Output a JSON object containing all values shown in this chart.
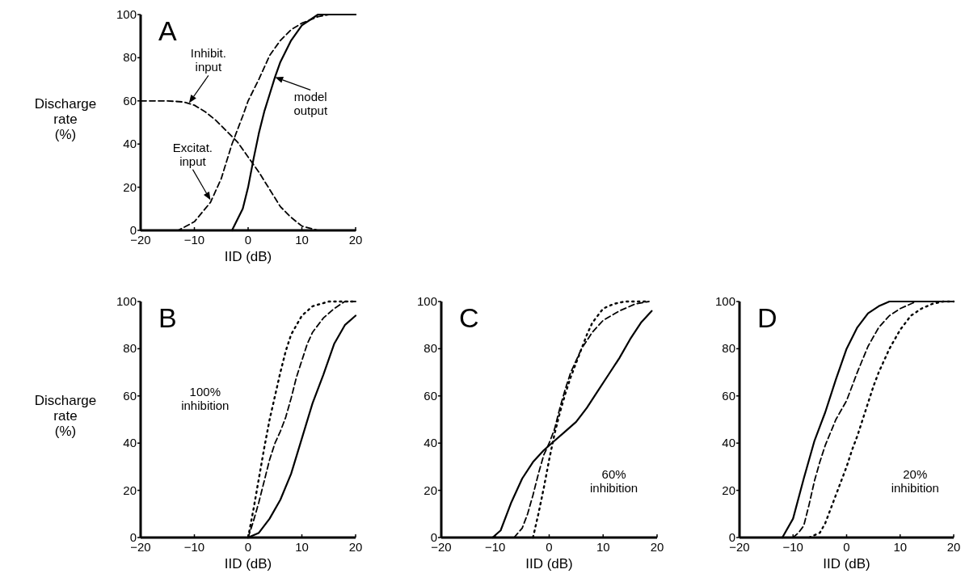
{
  "chart_data": [
    {
      "type": "line",
      "title": "A",
      "xlabel": "IID (dB)",
      "ylabel": "Discharge\nrate\n(%)",
      "xlim": [
        -20,
        20
      ],
      "ylim": [
        0,
        100
      ],
      "xticks": [
        -20,
        -10,
        0,
        10,
        20
      ],
      "yticks": [
        0,
        20,
        40,
        60,
        80,
        100
      ],
      "grid": false,
      "annotations": [
        {
          "text": "Inhibit.\ninput",
          "x": -11,
          "y": 59
        },
        {
          "text": "Excitat.\ninput",
          "x": -7,
          "y": 14
        },
        {
          "text": "model\noutput",
          "x": 5,
          "y": 71
        }
      ],
      "series": [
        {
          "color": "#000000",
          "line_style": "dashed",
          "x": [
            -20,
            -15,
            -12,
            -10,
            -8,
            -6,
            -4,
            -2,
            0,
            2,
            4,
            6,
            8,
            10,
            13,
            20
          ],
          "values": [
            60,
            60,
            59.5,
            58,
            55,
            51,
            46,
            41,
            34,
            27,
            19,
            11,
            6,
            2,
            0,
            0
          ]
        },
        {
          "color": "#000000",
          "line_style": "dashed",
          "x": [
            -20,
            -13,
            -10,
            -7,
            -5,
            -3,
            -1,
            0,
            2,
            4,
            6,
            8,
            10,
            13,
            15,
            20
          ],
          "values": [
            0,
            0,
            4,
            13,
            24,
            40,
            53,
            60,
            70,
            81,
            88,
            93,
            96,
            99,
            100,
            100
          ]
        },
        {
          "color": "#000000",
          "line_style": "solid",
          "x": [
            -3,
            -1,
            0,
            1,
            2,
            3,
            4,
            5,
            6,
            8,
            10,
            13,
            20
          ],
          "values": [
            0,
            10,
            20,
            33,
            45,
            55,
            63,
            71,
            78,
            88,
            95,
            100,
            100
          ]
        }
      ]
    },
    {
      "type": "line",
      "title": "B",
      "xlabel": "IID (dB)",
      "ylabel": "Discharge\nrate\n(%)",
      "xlim": [
        -20,
        20
      ],
      "ylim": [
        0,
        100
      ],
      "xticks": [
        -20,
        -10,
        0,
        10,
        20
      ],
      "yticks": [
        0,
        20,
        40,
        60,
        80,
        100
      ],
      "grid": false,
      "annotations": [
        "100%\ninhibition"
      ],
      "series": [
        {
          "color": "#000000",
          "line_style": "dotted",
          "x": [
            0,
            1,
            2,
            3,
            4,
            5,
            6,
            7,
            8,
            10,
            12,
            15,
            20
          ],
          "values": [
            0,
            12,
            25,
            38,
            50,
            60,
            70,
            79,
            86,
            94,
            98,
            100,
            100
          ]
        },
        {
          "color": "#000000",
          "line_style": "dashed",
          "x": [
            0,
            1,
            2,
            3,
            4,
            5,
            6,
            7,
            8,
            9,
            10,
            11,
            12,
            14,
            16,
            18,
            20
          ],
          "values": [
            0,
            7,
            15,
            24,
            33,
            40,
            45,
            51,
            59,
            68,
            75,
            82,
            87,
            93,
            97,
            100,
            100
          ]
        },
        {
          "color": "#000000",
          "line_style": "solid",
          "x": [
            0,
            2,
            4,
            6,
            8,
            10,
            12,
            14,
            16,
            18,
            20
          ],
          "values": [
            0,
            2,
            8,
            16,
            27,
            42,
            57,
            69,
            82,
            90,
            94
          ]
        }
      ]
    },
    {
      "type": "line",
      "title": "C",
      "xlabel": "IID (dB)",
      "xlim": [
        -20,
        20
      ],
      "ylim": [
        0,
        100
      ],
      "xticks": [
        -20,
        -10,
        0,
        10,
        20
      ],
      "yticks": [
        0,
        20,
        40,
        60,
        80,
        100
      ],
      "grid": false,
      "annotations": [
        "60%\ninhibition"
      ],
      "series": [
        {
          "color": "#000000",
          "line_style": "dotted",
          "x": [
            -3,
            -2,
            -1,
            0,
            1,
            2,
            3,
            4,
            5,
            6,
            7,
            8,
            10,
            12,
            14,
            18
          ],
          "values": [
            0,
            10,
            21,
            33,
            44,
            53,
            61,
            68,
            74,
            80,
            86,
            91,
            97,
            99,
            100,
            100
          ]
        },
        {
          "color": "#000000",
          "line_style": "dashed",
          "x": [
            -6.5,
            -5,
            -4,
            -3,
            -2,
            -1,
            0,
            1,
            2,
            3,
            4,
            6,
            8,
            10,
            13,
            16,
            18.5
          ],
          "values": [
            0,
            4,
            10,
            18,
            27,
            35,
            40,
            46,
            55,
            63,
            70,
            80,
            87,
            92,
            96,
            99,
            100
          ]
        },
        {
          "color": "#000000",
          "line_style": "solid",
          "x": [
            -10.5,
            -9,
            -7,
            -5,
            -3,
            -1,
            1,
            3,
            5,
            7,
            9,
            11,
            13,
            15,
            17,
            19
          ],
          "values": [
            0,
            3,
            15,
            25,
            32,
            37,
            41,
            45,
            49,
            55,
            62,
            69,
            76,
            84,
            91,
            96
          ]
        }
      ]
    },
    {
      "type": "line",
      "title": "D",
      "xlabel": "IID (dB)",
      "xlim": [
        -20,
        20
      ],
      "ylim": [
        0,
        100
      ],
      "xticks": [
        -20,
        -10,
        0,
        10,
        20
      ],
      "yticks": [
        0,
        20,
        40,
        60,
        80,
        100
      ],
      "grid": false,
      "annotations": [
        "20%\ninhibition"
      ],
      "series": [
        {
          "color": "#000000",
          "line_style": "dotted",
          "x": [
            -7,
            -5,
            -4,
            -3,
            -2,
            -1,
            0,
            1,
            2,
            3,
            4,
            5,
            6,
            8,
            10,
            12,
            14,
            16,
            18,
            20
          ],
          "values": [
            0,
            2,
            6,
            12,
            18,
            24,
            30,
            37,
            43,
            50,
            57,
            64,
            70,
            80,
            88,
            94,
            97,
            99,
            100,
            100
          ]
        },
        {
          "color": "#000000",
          "line_style": "dashed",
          "x": [
            -10,
            -9,
            -8,
            -7,
            -6,
            -5,
            -4,
            -2,
            0,
            2,
            4,
            6,
            8,
            10,
            13,
            20
          ],
          "values": [
            0,
            2,
            5,
            14,
            24,
            32,
            39,
            50,
            58,
            70,
            81,
            89,
            94,
            97,
            100,
            100
          ]
        },
        {
          "color": "#000000",
          "line_style": "solid",
          "x": [
            -12,
            -10,
            -8,
            -6,
            -4,
            -2,
            0,
            2,
            4,
            6,
            8,
            20
          ],
          "values": [
            0,
            8,
            25,
            41,
            53,
            67,
            80,
            89,
            95,
            98,
            100,
            100
          ]
        }
      ]
    }
  ]
}
